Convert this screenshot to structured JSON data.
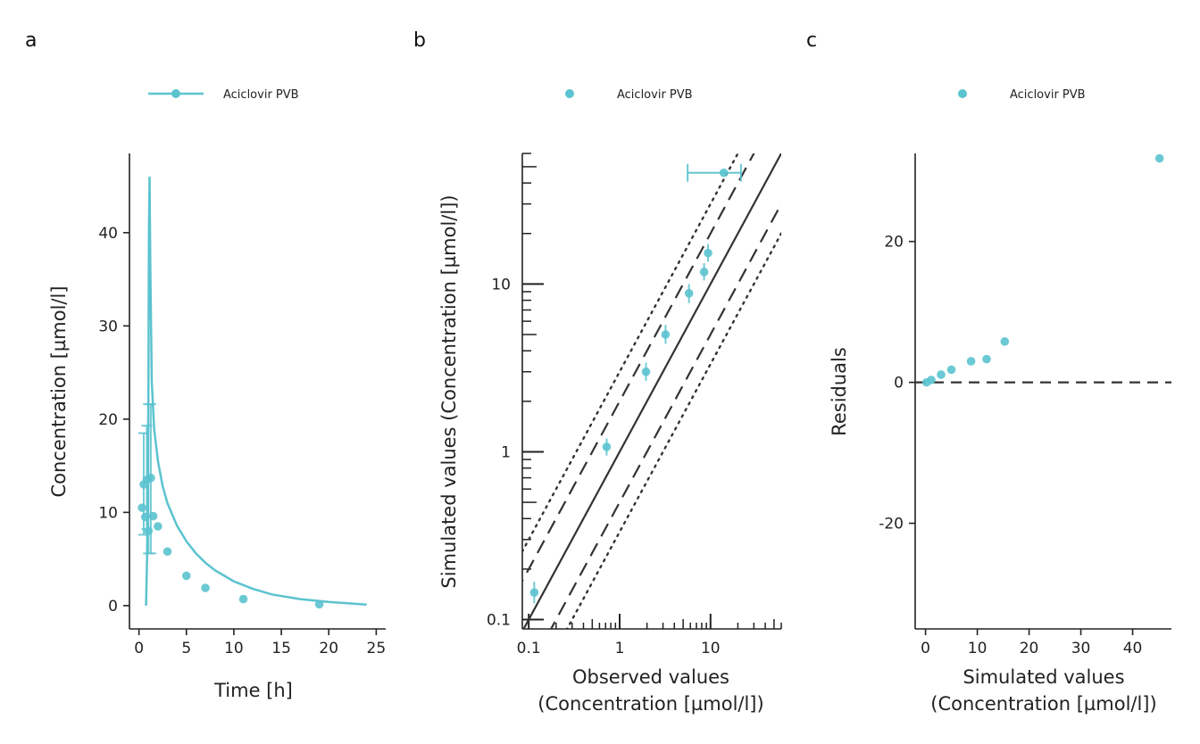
{
  "colors": {
    "series": "#5BC3CF",
    "axis": "#222222",
    "identity": "#333333"
  },
  "chart_data": [
    {
      "panel": "a",
      "type": "line",
      "legend": {
        "label": "Aciclovir PVB",
        "placement": "top"
      },
      "xlabel": "Time [h]",
      "ylabel": "Concentration [µmol/l]",
      "xlim": [
        -1,
        26
      ],
      "ylim": [
        -2.5,
        48.5
      ],
      "xticks": [
        0,
        5,
        10,
        15,
        20,
        25
      ],
      "yticks": [
        0,
        10,
        20,
        30,
        40
      ],
      "simulated_line": {
        "x": [
          0.75,
          0.85,
          0.95,
          1.0,
          1.05,
          1.12,
          1.2,
          1.35,
          1.6,
          2,
          2.5,
          3,
          4,
          5,
          6,
          7,
          8,
          10,
          12,
          14,
          17,
          20,
          24
        ],
        "y": [
          0,
          5,
          14,
          25,
          40,
          46,
          36,
          24,
          19,
          15.5,
          12.8,
          11,
          8.6,
          6.9,
          5.6,
          4.6,
          3.8,
          2.6,
          1.8,
          1.2,
          0.7,
          0.4,
          0.1
        ]
      },
      "observed": {
        "x": [
          0.33,
          0.5,
          0.67,
          0.83,
          1.0,
          1.25,
          1.5,
          2.0,
          3.0,
          5.0,
          7.0,
          11.0,
          19.0
        ],
        "y": [
          10.5,
          13.0,
          9.5,
          13.5,
          8.0,
          13.7,
          9.6,
          8.5,
          5.8,
          3.2,
          1.9,
          0.7,
          0.15
        ],
        "yerr_low": [
          null,
          7.6,
          null,
          8.2,
          5.6,
          5.6,
          null,
          null,
          null,
          null,
          null,
          null,
          null
        ],
        "yerr_high": [
          null,
          18.5,
          null,
          19.3,
          21.6,
          21.6,
          null,
          null,
          null,
          null,
          null,
          null,
          null
        ]
      }
    },
    {
      "panel": "b",
      "type": "scatter",
      "legend": {
        "label": "Aciclovir PVB",
        "placement": "top"
      },
      "xlabel": "Observed values",
      "xlabel2": "(Concentration [µmol/l])",
      "ylabel": "Simulated values (Concentration [µmol/l])",
      "x_scale": "log",
      "y_scale": "log",
      "xlim": [
        0.085,
        60
      ],
      "ylim": [
        0.088,
        60
      ],
      "xticks": [
        "0.1",
        "1",
        "10"
      ],
      "yticks": [
        "0.1",
        "1",
        "10"
      ],
      "reference_lines": [
        {
          "type": "identity",
          "factor": 1,
          "style": "solid"
        },
        {
          "type": "fold",
          "factor": 2,
          "style": "dashed"
        },
        {
          "type": "fold",
          "factor": 3,
          "style": "dotted"
        }
      ],
      "points": {
        "x": [
          0.115,
          0.72,
          1.95,
          3.2,
          5.8,
          8.5,
          9.4,
          14.0
        ],
        "y": [
          0.145,
          1.07,
          3.0,
          5.0,
          8.8,
          11.8,
          15.3,
          46.0
        ],
        "y_low": [
          0.125,
          0.95,
          2.65,
          4.4,
          7.7,
          10.5,
          13.6,
          null
        ],
        "y_high": [
          0.168,
          1.2,
          3.4,
          5.7,
          10.0,
          13.3,
          17.3,
          null
        ],
        "x_low": [
          null,
          null,
          null,
          null,
          null,
          null,
          null,
          5.6
        ],
        "x_high": [
          null,
          null,
          null,
          null,
          null,
          null,
          null,
          21.6
        ]
      }
    },
    {
      "panel": "c",
      "type": "scatter",
      "legend": {
        "label": "Aciclovir PVB",
        "placement": "top"
      },
      "xlabel": "Simulated values",
      "xlabel2": "(Concentration [µmol/l])",
      "ylabel": "Residuals",
      "xlim": [
        -2,
        47.5
      ],
      "ylim": [
        -35,
        32.5
      ],
      "xticks": [
        0,
        10,
        20,
        30,
        40
      ],
      "yticks": [
        -20,
        0,
        20
      ],
      "zero_line": {
        "y": 0,
        "style": "dashed"
      },
      "points": {
        "x": [
          0.2,
          1.1,
          3.0,
          5.0,
          8.8,
          11.8,
          15.3,
          45.2
        ],
        "y": [
          0.0,
          0.35,
          1.1,
          1.8,
          3.0,
          3.3,
          5.8,
          31.8
        ]
      }
    }
  ]
}
